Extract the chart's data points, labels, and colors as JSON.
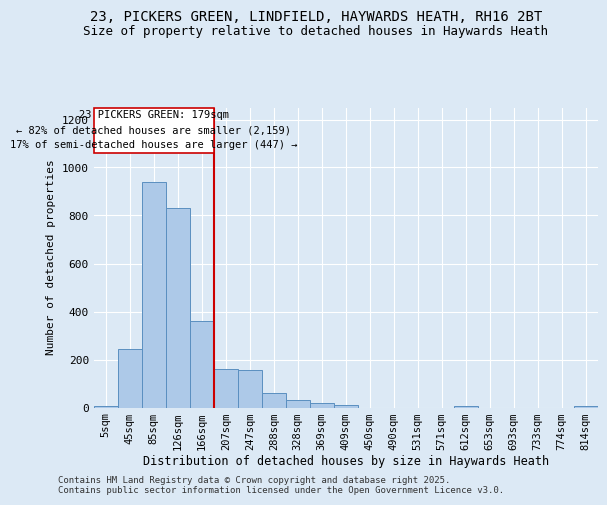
{
  "title_line1": "23, PICKERS GREEN, LINDFIELD, HAYWARDS HEATH, RH16 2BT",
  "title_line2": "Size of property relative to detached houses in Haywards Heath",
  "xlabel": "Distribution of detached houses by size in Haywards Heath",
  "ylabel": "Number of detached properties",
  "categories": [
    "5sqm",
    "45sqm",
    "85sqm",
    "126sqm",
    "166sqm",
    "207sqm",
    "247sqm",
    "288sqm",
    "328sqm",
    "369sqm",
    "409sqm",
    "450sqm",
    "490sqm",
    "531sqm",
    "571sqm",
    "612sqm",
    "653sqm",
    "693sqm",
    "733sqm",
    "774sqm",
    "814sqm"
  ],
  "values": [
    5,
    245,
    940,
    830,
    360,
    160,
    155,
    60,
    30,
    20,
    10,
    0,
    0,
    0,
    0,
    5,
    0,
    0,
    0,
    0,
    5
  ],
  "bar_color": "#adc9e8",
  "bar_edge_color": "#5a8fc0",
  "vline_x_index": 4,
  "vline_color": "#cc0000",
  "annotation_title": "23 PICKERS GREEN: 179sqm",
  "annotation_line2": "← 82% of detached houses are smaller (2,159)",
  "annotation_line3": "17% of semi-detached houses are larger (447) →",
  "annotation_box_color": "#cc0000",
  "ylim": [
    0,
    1250
  ],
  "yticks": [
    0,
    200,
    400,
    600,
    800,
    1000,
    1200
  ],
  "background_color": "#dce9f5",
  "footer_line1": "Contains HM Land Registry data © Crown copyright and database right 2025.",
  "footer_line2": "Contains public sector information licensed under the Open Government Licence v3.0."
}
